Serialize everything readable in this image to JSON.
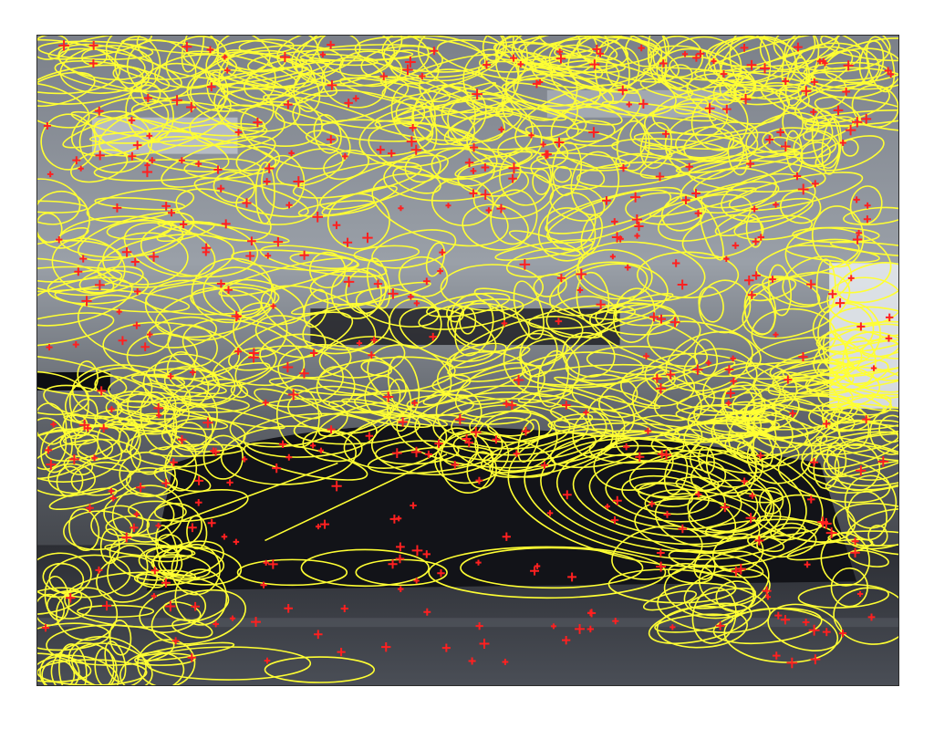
{
  "figure": {
    "ellipse_color": "#ffff33",
    "keypoint_color": "#ff2020",
    "keypoint_marker": "plus",
    "scene_colors": {
      "upper_region": "#8a8f98",
      "vehicle_dark": "#14151a",
      "road": "#3a3d44",
      "highlight": "#d8dde4"
    }
  }
}
